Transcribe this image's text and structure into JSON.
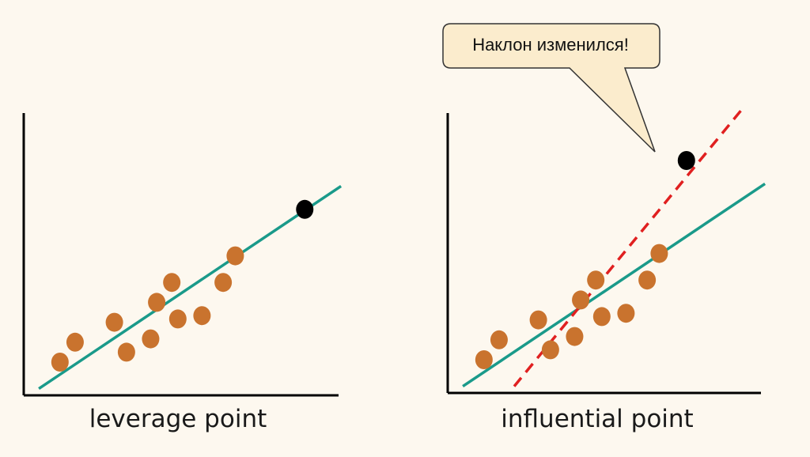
{
  "panels": {
    "left": {
      "label": "leverage point"
    },
    "right": {
      "label": "influential point",
      "callout": "Наклон изменился!"
    }
  },
  "colors": {
    "background": "#fdf8ef",
    "point": "#c9732e",
    "outlier": "#000000",
    "fit_line": "#1a9a8a",
    "shifted_line": "#e02020",
    "axis": "#000000",
    "bubble_fill": "#fbeccd",
    "bubble_stroke": "#333333"
  },
  "chart_data": [
    {
      "type": "scatter",
      "title": "leverage point",
      "series": [
        {
          "values": [
            [
              1.2,
              1.0
            ],
            [
              1.7,
              1.6
            ],
            [
              3.0,
              2.2
            ],
            [
              3.4,
              1.3
            ],
            [
              4.2,
              1.7
            ],
            [
              4.4,
              2.8
            ],
            [
              4.9,
              3.4
            ],
            [
              5.1,
              2.3
            ],
            [
              5.9,
              2.4
            ],
            [
              6.6,
              3.4
            ],
            [
              7.0,
              4.2
            ]
          ]
        },
        {
          "values": [
            [
              9.3,
              5.6
            ]
          ]
        }
      ],
      "fit_line": [
        [
          0.5,
          0.2
        ],
        [
          10.5,
          6.3
        ]
      ],
      "xlim": [
        0,
        10.5
      ],
      "ylim": [
        0,
        7
      ]
    },
    {
      "type": "scatter",
      "title": "influential point",
      "series": [
        {
          "values": [
            [
              1.2,
              1.0
            ],
            [
              1.7,
              1.6
            ],
            [
              3.0,
              2.2
            ],
            [
              3.4,
              1.3
            ],
            [
              4.2,
              1.7
            ],
            [
              4.4,
              2.8
            ],
            [
              4.9,
              3.4
            ],
            [
              5.1,
              2.3
            ],
            [
              5.9,
              2.4
            ],
            [
              6.6,
              3.4
            ],
            [
              7.0,
              4.2
            ]
          ]
        },
        {
          "values": [
            [
              7.9,
              7.0
            ]
          ]
        }
      ],
      "fit_line": [
        [
          0.5,
          0.2
        ],
        [
          10.5,
          6.3
        ]
      ],
      "shifted_line": [
        [
          2.2,
          0.2
        ],
        [
          9.7,
          8.5
        ]
      ],
      "xlim": [
        0,
        10.5
      ],
      "ylim": [
        0,
        7
      ]
    }
  ]
}
